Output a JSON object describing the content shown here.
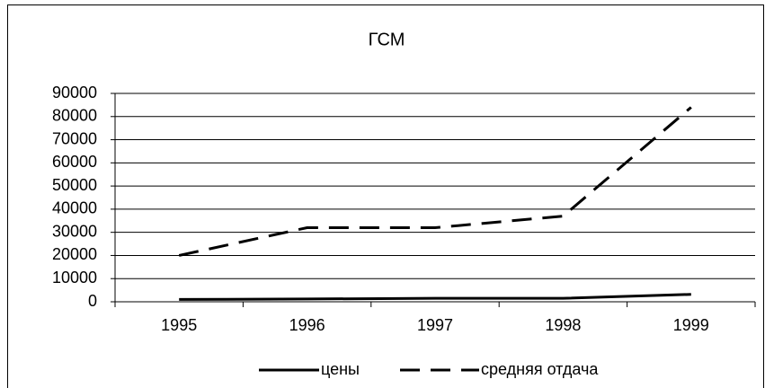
{
  "chart_data": {
    "type": "line",
    "title": "ГСМ",
    "categories": [
      "1995",
      "1996",
      "1997",
      "1998",
      "1999"
    ],
    "series": [
      {
        "name": "цены",
        "color": "#000000",
        "style": "solid",
        "values": [
          1000,
          1200,
          1500,
          1500,
          3200
        ]
      },
      {
        "name": "средняя отдача",
        "color": "#000000",
        "style": "dashed",
        "values": [
          20000,
          32000,
          32000,
          37000,
          84000
        ]
      }
    ],
    "ylim": [
      0,
      90000
    ],
    "yticks": [
      0,
      10000,
      20000,
      30000,
      40000,
      50000,
      60000,
      70000,
      80000,
      90000
    ],
    "grid": true,
    "legend": "bottom"
  }
}
